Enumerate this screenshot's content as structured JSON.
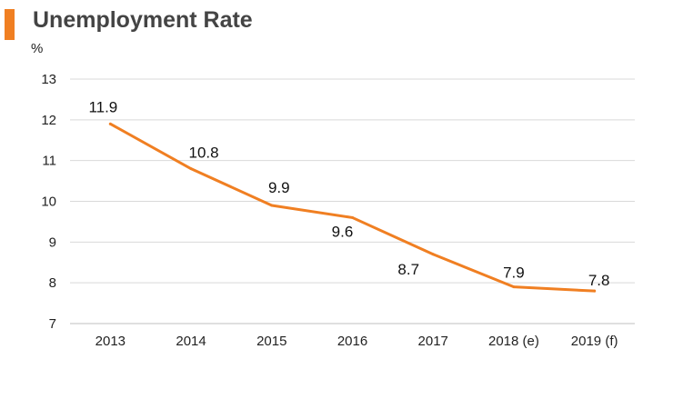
{
  "colors": {
    "accent": "#F07F22",
    "grid": "#D9D9D9",
    "axis": "#BFBFBF"
  },
  "chart_data": {
    "type": "line",
    "title": "Unemployment Rate",
    "ylabel": "%",
    "categories": [
      "2013",
      "2014",
      "2015",
      "2016",
      "2017",
      "2018 (e)",
      "2019 (f)"
    ],
    "series": [
      {
        "values": [
          11.9,
          10.8,
          9.9,
          9.6,
          8.7,
          7.9,
          7.8
        ]
      }
    ],
    "data_labels": [
      "11.9",
      "10.8",
      "9.9",
      "9.6",
      "8.7",
      "7.9",
      "7.8"
    ],
    "yticks": [
      "7",
      "8",
      "9",
      "10",
      "11",
      "12",
      "13"
    ],
    "ylim": [
      7,
      13
    ],
    "grid": true,
    "legend": "none"
  }
}
